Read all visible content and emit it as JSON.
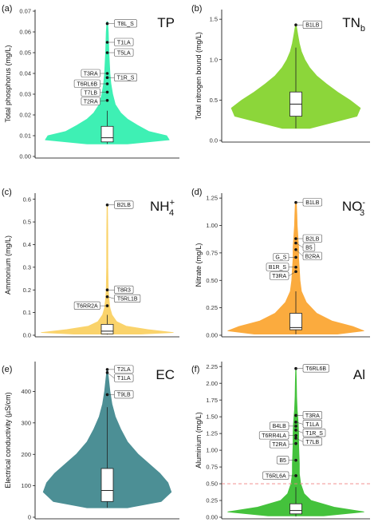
{
  "chart_data": [
    {
      "type": "violin",
      "panel_label": "(a)",
      "title": "TP",
      "title_sub": "",
      "title_sup": "",
      "ylabel": "Total phosphorus (mg/L)",
      "ylim": [
        0,
        0.07
      ],
      "yticks": [
        0.0,
        0.01,
        0.02,
        0.03,
        0.04,
        0.05,
        0.06,
        0.07
      ],
      "tick_decimals": 2,
      "color": "#3ef0b4",
      "violin": [
        [
          0.006,
          0.3
        ],
        [
          0.008,
          0.92
        ],
        [
          0.01,
          0.88
        ],
        [
          0.012,
          0.62
        ],
        [
          0.015,
          0.45
        ],
        [
          0.018,
          0.3
        ],
        [
          0.021,
          0.2
        ],
        [
          0.025,
          0.12
        ],
        [
          0.03,
          0.08
        ],
        [
          0.035,
          0.055
        ],
        [
          0.04,
          0.04
        ],
        [
          0.05,
          0.025
        ],
        [
          0.06,
          0.015
        ],
        [
          0.065,
          0.005
        ]
      ],
      "box": {
        "q1": 0.007,
        "median": 0.009,
        "q3": 0.0145,
        "whisker_low": 0.006,
        "whisker_high": 0.022
      },
      "outliers": [
        {
          "label": "T8L_S",
          "value": 0.064,
          "side": "right"
        },
        {
          "label": "T1LA",
          "value": 0.055,
          "side": "right"
        },
        {
          "label": "T5LA",
          "value": 0.05,
          "side": "right"
        },
        {
          "label": "T1R_S",
          "value": 0.038,
          "side": "right"
        },
        {
          "label": "T3RA",
          "value": 0.04,
          "side": "left"
        },
        {
          "label": "T6RL6B",
          "value": 0.035,
          "side": "left"
        },
        {
          "label": "T7LB",
          "value": 0.031,
          "side": "left"
        },
        {
          "label": "T2RA",
          "value": 0.027,
          "side": "left"
        }
      ],
      "threshold": null
    },
    {
      "type": "violin",
      "panel_label": "(b)",
      "title": "TN",
      "title_sub": "b",
      "title_sup": "",
      "ylabel": "Total nitrogen bound (mg/L)",
      "ylim": [
        0,
        1.6
      ],
      "yticks": [
        0.0,
        0.5,
        1.0,
        1.5
      ],
      "tick_decimals": 1,
      "color": "#8cd63a",
      "violin": [
        [
          0.15,
          0.2
        ],
        [
          0.3,
          0.88
        ],
        [
          0.4,
          0.93
        ],
        [
          0.5,
          0.78
        ],
        [
          0.6,
          0.6
        ],
        [
          0.7,
          0.44
        ],
        [
          0.8,
          0.3
        ],
        [
          0.9,
          0.2
        ],
        [
          1.0,
          0.13
        ],
        [
          1.1,
          0.08
        ],
        [
          1.2,
          0.05
        ],
        [
          1.3,
          0.03
        ],
        [
          1.43,
          0.005
        ]
      ],
      "box": {
        "q1": 0.3,
        "median": 0.45,
        "q3": 0.6,
        "whisker_low": 0.15,
        "whisker_high": 1.15
      },
      "outliers": [
        {
          "label": "B1LB",
          "value": 1.43,
          "side": "right"
        }
      ],
      "threshold": null
    },
    {
      "type": "violin",
      "panel_label": "(c)",
      "title": "NH",
      "title_sub": "4",
      "title_sup": "+",
      "ylabel": "Ammonium (mg/L)",
      "ylim": [
        0,
        0.62
      ],
      "yticks": [
        0.0,
        0.1,
        0.2,
        0.3,
        0.4,
        0.5,
        0.6
      ],
      "tick_decimals": 1,
      "color": "#fad36b",
      "violin": [
        [
          0.005,
          0.5
        ],
        [
          0.012,
          0.98
        ],
        [
          0.025,
          0.6
        ],
        [
          0.04,
          0.28
        ],
        [
          0.06,
          0.14
        ],
        [
          0.09,
          0.07
        ],
        [
          0.12,
          0.04
        ],
        [
          0.16,
          0.025
        ],
        [
          0.2,
          0.015
        ],
        [
          0.3,
          0.01
        ],
        [
          0.45,
          0.008
        ],
        [
          0.575,
          0.004
        ]
      ],
      "box": {
        "q1": 0.006,
        "median": 0.018,
        "q3": 0.048,
        "whisker_low": 0.003,
        "whisker_high": 0.09
      },
      "outliers": [
        {
          "label": "B2LB",
          "value": 0.575,
          "side": "right"
        },
        {
          "label": "T8R3",
          "value": 0.2,
          "side": "right"
        },
        {
          "label": "T5RL1B",
          "value": 0.17,
          "side": "right"
        },
        {
          "label": "T6RR2A",
          "value": 0.13,
          "side": "left"
        }
      ],
      "threshold": null
    },
    {
      "type": "violin",
      "panel_label": "(d)",
      "title": "NO",
      "title_sub": "3",
      "title_sup": "-",
      "ylabel": "Nitrate (mg/L)",
      "ylim": [
        0,
        1.28
      ],
      "yticks": [
        0.0,
        0.25,
        0.5,
        0.75,
        1.0,
        1.25
      ],
      "tick_decimals": 2,
      "color": "#fbab3e",
      "violin": [
        [
          0.01,
          0.6
        ],
        [
          0.04,
          0.98
        ],
        [
          0.08,
          0.82
        ],
        [
          0.13,
          0.52
        ],
        [
          0.2,
          0.3
        ],
        [
          0.3,
          0.15
        ],
        [
          0.4,
          0.08
        ],
        [
          0.5,
          0.06
        ],
        [
          0.6,
          0.05
        ],
        [
          0.7,
          0.04
        ],
        [
          0.8,
          0.04
        ],
        [
          0.9,
          0.03
        ],
        [
          1.0,
          0.02
        ],
        [
          1.1,
          0.015
        ],
        [
          1.2,
          0.008
        ]
      ],
      "box": {
        "q1": 0.05,
        "median": 0.07,
        "q3": 0.2,
        "whisker_low": 0.01,
        "whisker_high": 0.4
      },
      "outliers": [
        {
          "label": "B1LB",
          "value": 1.21,
          "side": "right"
        },
        {
          "label": "B2LB",
          "value": 0.88,
          "side": "right"
        },
        {
          "label": "B5",
          "value": 0.84,
          "side": "right"
        },
        {
          "label": "B2RA",
          "value": 0.78,
          "side": "right"
        },
        {
          "label": "G_S",
          "value": 0.71,
          "side": "left"
        },
        {
          "label": "B1R_S",
          "value": 0.62,
          "side": "left"
        },
        {
          "label": "T3RA",
          "value": 0.58,
          "side": "left"
        }
      ],
      "threshold": null
    },
    {
      "type": "violin",
      "panel_label": "(e)",
      "title": "EC",
      "title_sub": "",
      "title_sup": "",
      "ylabel": "Electrical conductivity (µS/cm)",
      "ylim": [
        0,
        490
      ],
      "yticks": [
        0,
        100,
        200,
        300,
        400
      ],
      "tick_decimals": 0,
      "color": "#4c8f95",
      "violin": [
        [
          30,
          0.3
        ],
        [
          50,
          0.8
        ],
        [
          80,
          0.95
        ],
        [
          110,
          0.9
        ],
        [
          140,
          0.78
        ],
        [
          170,
          0.62
        ],
        [
          200,
          0.46
        ],
        [
          240,
          0.3
        ],
        [
          280,
          0.2
        ],
        [
          320,
          0.12
        ],
        [
          360,
          0.07
        ],
        [
          400,
          0.04
        ],
        [
          440,
          0.02
        ],
        [
          470,
          0.005
        ]
      ],
      "box": {
        "q1": 50,
        "median": 85,
        "q3": 155,
        "whisker_low": 30,
        "whisker_high": 350
      },
      "outliers": [
        {
          "label": "T2LA",
          "value": 470,
          "side": "right"
        },
        {
          "label": "T1LA",
          "value": 460,
          "side": "right"
        },
        {
          "label": "T9LB",
          "value": 390,
          "side": "right"
        }
      ],
      "threshold": null
    },
    {
      "type": "violin",
      "panel_label": "(f)",
      "title": "Al",
      "title_sub": "",
      "title_sup": "",
      "ylabel": "Aluminium (mg/L)",
      "ylim": [
        0,
        2.3
      ],
      "yticks": [
        0.0,
        0.25,
        0.5,
        0.75,
        1.0,
        1.25,
        1.5,
        1.75,
        2.0,
        2.25
      ],
      "tick_decimals": 2,
      "color": "#44c23c",
      "violin": [
        [
          0.02,
          0.4
        ],
        [
          0.08,
          0.98
        ],
        [
          0.15,
          0.55
        ],
        [
          0.25,
          0.22
        ],
        [
          0.35,
          0.12
        ],
        [
          0.5,
          0.07
        ],
        [
          0.65,
          0.05
        ],
        [
          0.8,
          0.05
        ],
        [
          0.95,
          0.045
        ],
        [
          1.1,
          0.04
        ],
        [
          1.25,
          0.04
        ],
        [
          1.4,
          0.035
        ],
        [
          1.6,
          0.02
        ],
        [
          1.8,
          0.012
        ],
        [
          2.0,
          0.008
        ],
        [
          2.2,
          0.004
        ]
      ],
      "box": {
        "q1": 0.05,
        "median": 0.1,
        "q3": 0.2,
        "whisker_low": 0.01,
        "whisker_high": 0.45
      },
      "outliers": [
        {
          "label": "T6RL6B",
          "value": 2.22,
          "side": "right"
        },
        {
          "label": "T3RA",
          "value": 1.52,
          "side": "right"
        },
        {
          "label": "T1LA",
          "value": 1.42,
          "side": "right"
        },
        {
          "label": "T1R_S",
          "value": 1.3,
          "side": "right"
        },
        {
          "label": "T7LB",
          "value": 1.18,
          "side": "right"
        },
        {
          "label": "B4LB",
          "value": 1.36,
          "side": "left"
        },
        {
          "label": "T6RR4LA",
          "value": 1.22,
          "side": "left"
        },
        {
          "label": "T2RA",
          "value": 1.1,
          "side": "left"
        },
        {
          "label": "B5",
          "value": 0.85,
          "side": "left"
        },
        {
          "label": "T6RL6A",
          "value": 0.62,
          "side": "left"
        }
      ],
      "threshold": {
        "value": 0.5,
        "color": "#f08080"
      }
    }
  ]
}
